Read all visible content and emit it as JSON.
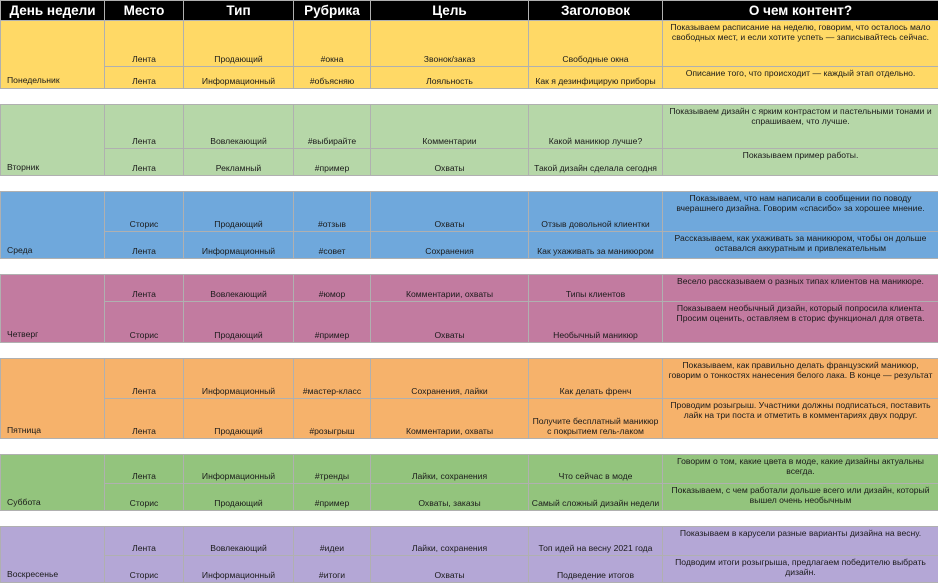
{
  "headers": [
    "День недели",
    "Место",
    "Тип",
    "Рубрика",
    "Цель",
    "Заголовок",
    "О чем контент?"
  ],
  "days": [
    {
      "day": "Понедельник",
      "color": "#ffd966",
      "rows": [
        {
          "place": "Лента",
          "type": "Продающий",
          "rubric": "#окна",
          "goal": "Звонок/заказ",
          "title": "Свободные окна",
          "content": "Показываем расписание на неделю, говорим, что осталось мало свободных мест, и если хотите успеть — записывайтесь сейчас."
        },
        {
          "place": "Лента",
          "type": "Информационный",
          "rubric": "#объясняю",
          "goal": "Лояльность",
          "title": "Как я дезинфицирую приборы",
          "content": "Описание того, что происходит — каждый этап отдельно."
        }
      ]
    },
    {
      "day": "Вторник",
      "color": "#b6d7a8",
      "rows": [
        {
          "place": "Лента",
          "type": "Вовлекающий",
          "rubric": "#выбирайте",
          "goal": "Комментарии",
          "title": "Какой маникюр лучше?",
          "content": "Показываем дизайн с ярким контрастом и пастельными тонами и спрашиваем, что лучше."
        },
        {
          "place": "Лента",
          "type": "Рекламный",
          "rubric": "#пример",
          "goal": "Охваты",
          "title": "Такой дизайн сделала сегодня",
          "content": "Показываем пример работы."
        }
      ]
    },
    {
      "day": "Среда",
      "color": "#6fa8dc",
      "rows": [
        {
          "place": "Сторис",
          "type": "Продающий",
          "rubric": "#отзыв",
          "goal": "Охваты",
          "title": "Отзыв довольной клиентки",
          "content": "Показываем, что нам написали в сообщении по поводу вчерашнего дизайна. Говорим «спасибо» за хорошее мнение."
        },
        {
          "place": "Лента",
          "type": "Информационный",
          "rubric": "#совет",
          "goal": "Сохранения",
          "title": "Как ухаживать за маникюром",
          "content": "Рассказываем, как ухаживать за маникюром, чтобы он дольше оставался аккуратным и привлекательным"
        }
      ]
    },
    {
      "day": "Четверг",
      "color": "#c27ba0",
      "rows": [
        {
          "place": "Лента",
          "type": "Вовлекающий",
          "rubric": "#юмор",
          "goal": "Комментарии, охваты",
          "title": "Типы клиентов",
          "content": "Весело рассказываем о разных типах клиентов на маникюре."
        },
        {
          "place": "Сторис",
          "type": "Продающий",
          "rubric": "#пример",
          "goal": "Охваты",
          "title": "Необычный маникюр",
          "content": "Показываем необычный дизайн, который попросила клиента. Просим оценить, оставляем в сторис функционал для ответа."
        }
      ]
    },
    {
      "day": "Пятница",
      "color": "#f6b26b",
      "rows": [
        {
          "place": "Лента",
          "type": "Информационный",
          "rubric": "#мастер-класс",
          "goal": "Сохранения, лайки",
          "title": "Как делать френч",
          "content": "Показываем, как правильно делать французский маникюр, говорим о тонкостях нанесения белого лака. В конце — результат"
        },
        {
          "place": "Лента",
          "type": "Продающий",
          "rubric": "#розыгрыш",
          "goal": "Комментарии, охваты",
          "title": "Получите бесплатный маникюр с покрытием гель-лаком",
          "content": "Проводим розыгрыш. Участники должны подписаться, поставить лайк на три поста и отметить в комментариях двух подруг."
        }
      ]
    },
    {
      "day": "Суббота",
      "color": "#93c47d",
      "rows": [
        {
          "place": "Лента",
          "type": "Информационный",
          "rubric": "#тренды",
          "goal": "Лайки, сохранения",
          "title": "Что сейчас в моде",
          "content": "Говорим о том, какие цвета в моде, какие дизайны актуальны всегда."
        },
        {
          "place": "Сторис",
          "type": "Продающий",
          "rubric": "#пример",
          "goal": "Охваты, заказы",
          "title": "Самый сложный дизайн недели",
          "content": "Показываем, с чем работали дольше всего или дизайн, который вышел очень необычным"
        }
      ]
    },
    {
      "day": "Воскресенье",
      "color": "#b4a7d6",
      "rows": [
        {
          "place": "Лента",
          "type": "Вовлекающий",
          "rubric": "#идеи",
          "goal": "Лайки, сохранения",
          "title": "Топ идей на весну 2021 года",
          "content": "Показываем в карусели разные варианты дизайна на весну."
        },
        {
          "place": "Сторис",
          "type": "Информационный",
          "rubric": "#итоги",
          "goal": "Охваты",
          "title": "Подведение итогов",
          "content": "Подводим итоги розыгрыша, предлагаем победителю выбрать дизайн."
        }
      ]
    }
  ]
}
